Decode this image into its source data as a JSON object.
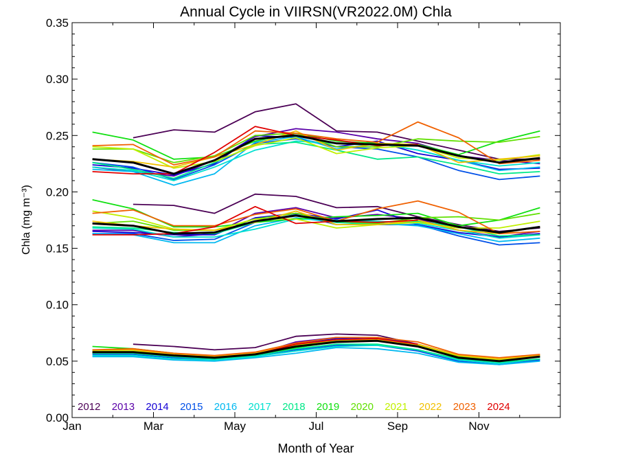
{
  "chart_data": {
    "type": "line",
    "title": "Annual Cycle in VIIRSN(VR2022.0M) Chla",
    "xlabel": "Month of Year",
    "ylabel": "Chla (mg m⁻³)",
    "xlim": [
      1,
      13
    ],
    "ylim": [
      0,
      0.35
    ],
    "x_ticks": [
      {
        "value": 1,
        "label": "Jan"
      },
      {
        "value": 3,
        "label": "Mar"
      },
      {
        "value": 5,
        "label": "May"
      },
      {
        "value": 7,
        "label": "Jul"
      },
      {
        "value": 9,
        "label": "Sep"
      },
      {
        "value": 11,
        "label": "Nov"
      }
    ],
    "y_ticks": [
      "0.00",
      "0.05",
      "0.10",
      "0.15",
      "0.20",
      "0.25",
      "0.30",
      "0.35"
    ],
    "x": [
      1.5,
      2.5,
      3.5,
      4.5,
      5.5,
      6.5,
      7.5,
      8.5,
      9.5,
      10.5,
      11.5,
      12.5
    ],
    "legend_placement": "bottom-left",
    "groups": [
      "upper",
      "middle",
      "lower"
    ],
    "series": [
      {
        "name": "2012",
        "color": "#4b0055",
        "upper": [
          null,
          0.248,
          0.255,
          0.253,
          0.271,
          0.278,
          0.254,
          0.253,
          0.245,
          0.237,
          0.229,
          0.229
        ],
        "middle": [
          null,
          0.189,
          0.188,
          0.181,
          0.198,
          0.196,
          0.186,
          0.187,
          0.178,
          0.171,
          0.165,
          0.168
        ],
        "lower": [
          null,
          0.065,
          0.063,
          0.06,
          0.062,
          0.072,
          0.074,
          0.073,
          0.065,
          0.055,
          0.051,
          0.054
        ]
      },
      {
        "name": "2013",
        "color": "#5a00a8",
        "upper": [
          0.222,
          0.218,
          0.214,
          0.228,
          0.249,
          0.256,
          0.253,
          0.247,
          0.243,
          0.232,
          0.228,
          0.225
        ],
        "middle": [
          0.166,
          0.166,
          0.16,
          0.163,
          0.181,
          0.186,
          0.177,
          0.18,
          0.176,
          0.166,
          0.16,
          0.165
        ],
        "lower": [
          0.058,
          0.058,
          0.055,
          0.053,
          0.056,
          0.067,
          0.071,
          0.071,
          0.064,
          0.054,
          0.05,
          0.054
        ]
      },
      {
        "name": "2014",
        "color": "#1400d4",
        "upper": [
          0.224,
          0.221,
          0.215,
          0.225,
          0.25,
          0.248,
          0.24,
          0.245,
          0.234,
          0.228,
          0.22,
          0.221
        ],
        "middle": [
          0.165,
          0.164,
          0.162,
          0.162,
          0.177,
          0.181,
          0.176,
          0.184,
          0.171,
          0.164,
          0.16,
          0.163
        ],
        "lower": [
          0.057,
          0.058,
          0.055,
          0.053,
          0.057,
          0.066,
          0.07,
          0.071,
          0.065,
          0.054,
          0.05,
          0.054
        ]
      },
      {
        "name": "2015",
        "color": "#0050e8",
        "upper": [
          0.226,
          0.222,
          0.211,
          0.224,
          0.243,
          0.247,
          0.24,
          0.238,
          0.231,
          0.219,
          0.211,
          0.214
        ],
        "middle": [
          0.163,
          0.163,
          0.157,
          0.158,
          0.173,
          0.18,
          0.171,
          0.171,
          0.171,
          0.161,
          0.153,
          0.155
        ],
        "lower": [
          0.056,
          0.056,
          0.053,
          0.052,
          0.055,
          0.06,
          0.064,
          0.064,
          0.059,
          0.05,
          0.047,
          0.051
        ]
      },
      {
        "name": "2016",
        "color": "#00b8f0",
        "upper": [
          0.22,
          0.218,
          0.206,
          0.216,
          0.244,
          0.249,
          0.238,
          0.243,
          0.237,
          0.228,
          0.219,
          0.222
        ],
        "middle": [
          0.163,
          0.162,
          0.155,
          0.155,
          0.17,
          0.177,
          0.173,
          0.172,
          0.17,
          0.163,
          0.156,
          0.159
        ],
        "lower": [
          0.054,
          0.054,
          0.051,
          0.05,
          0.053,
          0.057,
          0.062,
          0.061,
          0.057,
          0.049,
          0.047,
          0.05
        ]
      },
      {
        "name": "2017",
        "color": "#00e0d0",
        "upper": [
          0.222,
          0.219,
          0.21,
          0.222,
          0.237,
          0.245,
          0.243,
          0.243,
          0.237,
          0.228,
          0.223,
          0.226
        ],
        "middle": [
          0.168,
          0.167,
          0.16,
          0.16,
          0.167,
          0.176,
          0.175,
          0.174,
          0.172,
          0.166,
          0.159,
          0.162
        ],
        "lower": [
          0.055,
          0.055,
          0.052,
          0.051,
          0.054,
          0.059,
          0.063,
          0.064,
          0.06,
          0.051,
          0.048,
          0.052
        ]
      },
      {
        "name": "2018",
        "color": "#00e888",
        "upper": [
          0.226,
          0.22,
          0.212,
          0.226,
          0.242,
          0.244,
          0.237,
          0.229,
          0.231,
          0.224,
          0.216,
          0.218
        ],
        "middle": [
          0.169,
          0.168,
          0.164,
          0.163,
          0.173,
          0.179,
          0.173,
          0.171,
          0.174,
          0.169,
          0.161,
          0.162
        ],
        "lower": [
          0.057,
          0.057,
          0.054,
          0.052,
          0.055,
          0.061,
          0.065,
          0.065,
          0.06,
          0.052,
          0.049,
          0.052
        ]
      },
      {
        "name": "2019",
        "color": "#10e010",
        "upper": [
          0.253,
          0.246,
          0.229,
          0.231,
          0.245,
          0.252,
          0.245,
          0.243,
          0.242,
          0.233,
          0.245,
          0.254
        ],
        "middle": [
          0.193,
          0.185,
          0.169,
          0.169,
          0.173,
          0.176,
          0.178,
          0.179,
          0.181,
          0.17,
          0.175,
          0.186
        ],
        "lower": [
          0.063,
          0.061,
          0.057,
          0.054,
          0.056,
          0.062,
          0.067,
          0.068,
          0.064,
          0.054,
          0.05,
          0.054
        ]
      },
      {
        "name": "2020",
        "color": "#60e000",
        "upper": [
          0.238,
          0.238,
          0.226,
          0.232,
          0.25,
          0.252,
          0.24,
          0.24,
          0.247,
          0.245,
          0.244,
          0.249
        ],
        "middle": [
          0.172,
          0.174,
          0.166,
          0.166,
          0.176,
          0.181,
          0.174,
          0.172,
          0.177,
          0.178,
          0.175,
          0.181
        ],
        "lower": [
          0.058,
          0.058,
          0.055,
          0.053,
          0.056,
          0.063,
          0.068,
          0.068,
          0.063,
          0.054,
          0.051,
          0.055
        ]
      },
      {
        "name": "2021",
        "color": "#c0f000",
        "upper": [
          0.24,
          0.238,
          0.221,
          0.227,
          0.241,
          0.248,
          0.234,
          0.239,
          0.241,
          0.23,
          0.228,
          0.233
        ],
        "middle": [
          0.183,
          0.177,
          0.167,
          0.166,
          0.176,
          0.176,
          0.168,
          0.171,
          0.173,
          0.168,
          0.168,
          0.174
        ],
        "lower": [
          0.059,
          0.059,
          0.056,
          0.054,
          0.056,
          0.064,
          0.068,
          0.069,
          0.064,
          0.055,
          0.051,
          0.055
        ]
      },
      {
        "name": "2022",
        "color": "#f0c000",
        "upper": [
          0.229,
          0.227,
          0.222,
          0.231,
          0.242,
          0.254,
          0.237,
          0.243,
          0.242,
          0.226,
          0.229,
          0.232
        ],
        "middle": [
          0.174,
          0.17,
          0.167,
          0.166,
          0.173,
          0.183,
          0.171,
          0.171,
          0.175,
          0.166,
          0.163,
          0.169
        ],
        "lower": [
          0.06,
          0.06,
          0.056,
          0.054,
          0.057,
          0.065,
          0.069,
          0.069,
          0.065,
          0.055,
          0.052,
          0.055
        ]
      },
      {
        "name": "2023",
        "color": "#f06000",
        "upper": [
          0.241,
          0.242,
          0.224,
          0.231,
          0.254,
          0.252,
          0.247,
          0.244,
          0.262,
          0.248,
          0.225,
          0.228
        ],
        "middle": [
          0.181,
          0.184,
          0.17,
          0.17,
          0.18,
          0.185,
          0.174,
          0.185,
          0.192,
          0.182,
          0.163,
          0.165
        ],
        "lower": [
          0.06,
          0.061,
          0.057,
          0.055,
          0.058,
          0.066,
          0.071,
          0.071,
          0.067,
          0.056,
          0.053,
          0.056
        ]
      },
      {
        "name": "2024",
        "color": "#e00000",
        "upper": [
          0.218,
          0.216,
          0.216,
          0.235,
          0.258,
          0.25,
          0.246,
          0.241,
          0.242,
          null,
          null,
          null
        ],
        "middle": [
          0.162,
          0.162,
          0.163,
          0.169,
          0.187,
          0.172,
          0.174,
          0.173,
          0.175,
          null,
          null,
          null
        ],
        "lower": [
          0.058,
          0.058,
          0.055,
          0.053,
          0.056,
          0.065,
          0.069,
          0.07,
          0.065,
          null,
          null,
          null
        ]
      },
      {
        "name": "",
        "color": "#000000",
        "is_mean": true,
        "upper": [
          0.229,
          0.226,
          0.216,
          0.228,
          0.247,
          0.25,
          0.243,
          0.242,
          0.241,
          0.232,
          0.226,
          0.23
        ],
        "middle": [
          0.172,
          0.17,
          0.163,
          0.164,
          0.174,
          0.179,
          0.174,
          0.176,
          0.177,
          0.169,
          0.164,
          0.169
        ],
        "lower": [
          0.058,
          0.058,
          0.055,
          0.053,
          0.056,
          0.063,
          0.067,
          0.068,
          0.063,
          0.053,
          0.05,
          0.054
        ]
      }
    ]
  }
}
